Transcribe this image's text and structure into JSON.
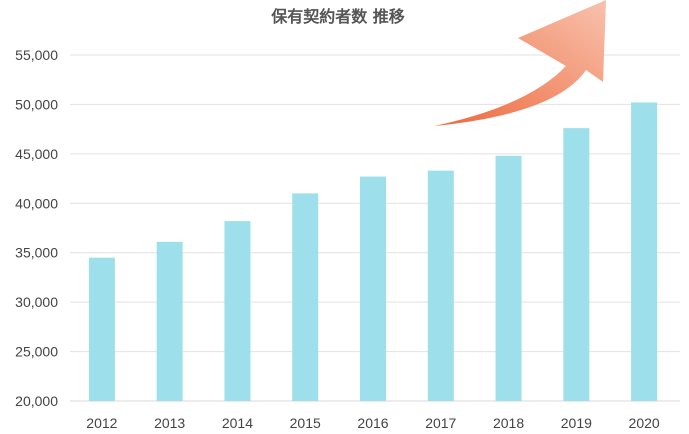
{
  "chart_data": {
    "type": "bar",
    "title": "保有契約者数 推移",
    "xlabel": "",
    "ylabel": "",
    "categories": [
      "2012",
      "2013",
      "2014",
      "2015",
      "2016",
      "2017",
      "2018",
      "2019",
      "2020"
    ],
    "values": [
      34500,
      36100,
      38200,
      41000,
      42700,
      43300,
      44800,
      47600,
      50200
    ],
    "ylim": [
      20000,
      55000
    ],
    "yticks": [
      20000,
      25000,
      30000,
      35000,
      40000,
      45000,
      50000,
      55000
    ],
    "ytick_labels": [
      "20,000",
      "25,000",
      "30,000",
      "35,000",
      "40,000",
      "45,000",
      "50,000",
      "55,000"
    ],
    "grid": true,
    "legend": "none",
    "annotation": "upward-trend-arrow"
  },
  "colors": {
    "bar": "#9ddfea",
    "arrow_dark": "#ec6a3d",
    "arrow_light": "#f8b9a3",
    "grid": "#e2e2e2",
    "text": "#444444",
    "title": "#555555"
  }
}
